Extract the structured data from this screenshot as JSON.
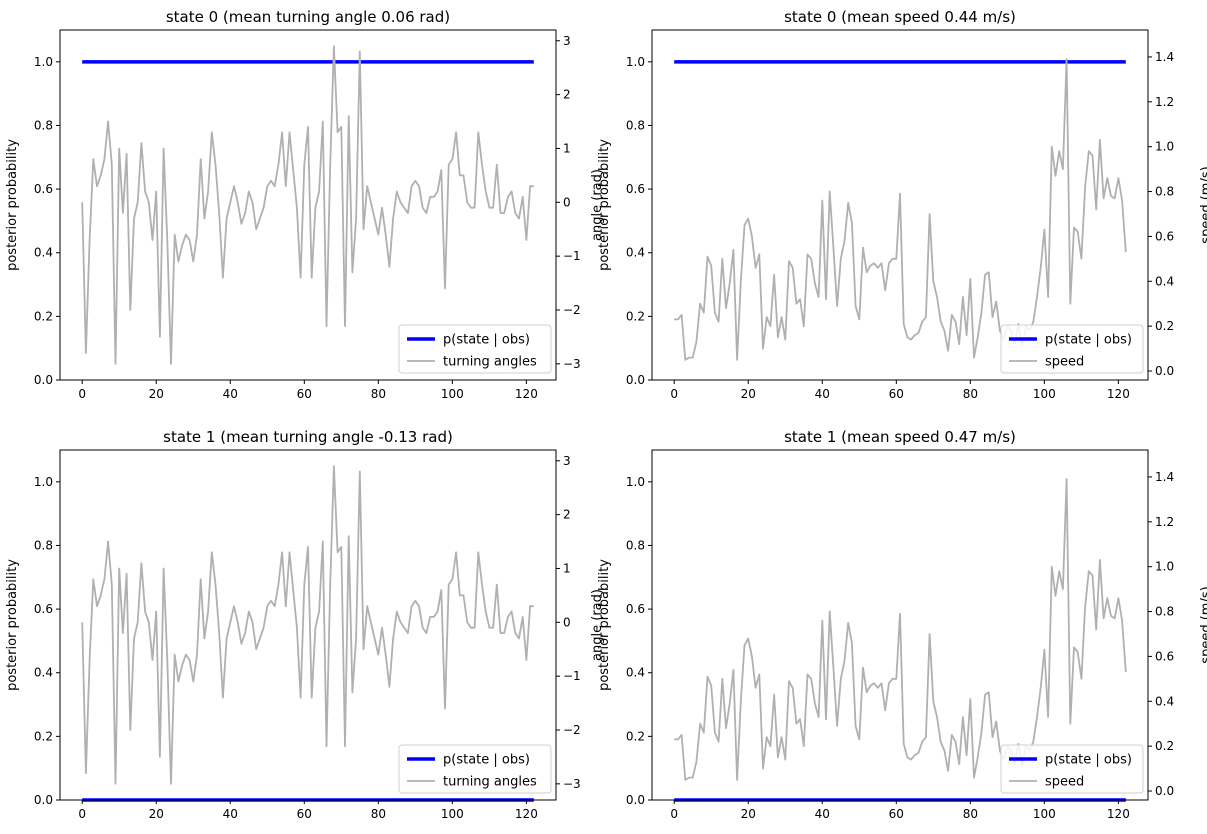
{
  "chart_data": [
    {
      "type": "line",
      "title": "state 0 (mean turning angle 0.06 rad)",
      "ylabel": "posterior probability",
      "ylabel_right": "angle (rad)",
      "xlim": [
        -6,
        128
      ],
      "ylim": [
        0,
        1.1
      ],
      "ylim_right": [
        -3.3,
        3.2
      ],
      "x_ticks": [
        "0",
        "20",
        "40",
        "60",
        "80",
        "100",
        "120"
      ],
      "y_ticks": [
        "0.0",
        "0.2",
        "0.4",
        "0.6",
        "0.8",
        "1.0"
      ],
      "y_ticks_right": [
        "−3",
        "−2",
        "−1",
        "0",
        "1",
        "2",
        "3"
      ],
      "legend_position": "lower right",
      "series": [
        {
          "name": "p(state | obs)",
          "axis": "left",
          "color": "#0000ff",
          "constant": 1.0,
          "x_range": [
            0,
            122
          ]
        },
        {
          "name": "turning angles",
          "axis": "right",
          "color": "#b0b0b0",
          "signal": "angle"
        }
      ]
    },
    {
      "type": "line",
      "title": "state 0 (mean speed 0.44 m/s)",
      "ylabel": "posterior probability",
      "ylabel_right": "speed (m/s)",
      "xlim": [
        -6,
        128
      ],
      "ylim": [
        0,
        1.1
      ],
      "ylim_right": [
        -0.04,
        1.52
      ],
      "x_ticks": [
        "0",
        "20",
        "40",
        "60",
        "80",
        "100",
        "120"
      ],
      "y_ticks": [
        "0.0",
        "0.2",
        "0.4",
        "0.6",
        "0.8",
        "1.0"
      ],
      "y_ticks_right": [
        "0.0",
        "0.2",
        "0.4",
        "0.6",
        "0.8",
        "1.0",
        "1.2",
        "1.4"
      ],
      "legend_position": "lower right",
      "series": [
        {
          "name": "p(state | obs)",
          "axis": "left",
          "color": "#0000ff",
          "constant": 1.0,
          "x_range": [
            0,
            122
          ]
        },
        {
          "name": "speed",
          "axis": "right",
          "color": "#b0b0b0",
          "signal": "speed"
        }
      ]
    },
    {
      "type": "line",
      "title": "state 1 (mean turning angle -0.13 rad)",
      "ylabel": "posterior probability",
      "ylabel_right": "angle (rad)",
      "xlim": [
        -6,
        128
      ],
      "ylim": [
        0,
        1.1
      ],
      "ylim_right": [
        -3.3,
        3.2
      ],
      "x_ticks": [
        "0",
        "20",
        "40",
        "60",
        "80",
        "100",
        "120"
      ],
      "y_ticks": [
        "0.0",
        "0.2",
        "0.4",
        "0.6",
        "0.8",
        "1.0"
      ],
      "y_ticks_right": [
        "−3",
        "−2",
        "−1",
        "0",
        "1",
        "2",
        "3"
      ],
      "legend_position": "lower right",
      "series": [
        {
          "name": "p(state | obs)",
          "axis": "left",
          "color": "#0000ff",
          "constant": 0.0,
          "x_range": [
            0,
            122
          ]
        },
        {
          "name": "turning angles",
          "axis": "right",
          "color": "#b0b0b0",
          "signal": "angle"
        }
      ]
    },
    {
      "type": "line",
      "title": "state 1 (mean speed 0.47 m/s)",
      "ylabel": "posterior probability",
      "ylabel_right": "speed (m/s)",
      "xlim": [
        -6,
        128
      ],
      "ylim": [
        0,
        1.1
      ],
      "ylim_right": [
        -0.04,
        1.52
      ],
      "x_ticks": [
        "0",
        "20",
        "40",
        "60",
        "80",
        "100",
        "120"
      ],
      "y_ticks": [
        "0.0",
        "0.2",
        "0.4",
        "0.6",
        "0.8",
        "1.0"
      ],
      "y_ticks_right": [
        "0.0",
        "0.2",
        "0.4",
        "0.6",
        "0.8",
        "1.0",
        "1.2",
        "1.4"
      ],
      "legend_position": "lower right",
      "series": [
        {
          "name": "p(state | obs)",
          "axis": "left",
          "color": "#0000ff",
          "constant": 0.0,
          "x_range": [
            0,
            122
          ]
        },
        {
          "name": "speed",
          "axis": "right",
          "color": "#b0b0b0",
          "signal": "speed"
        }
      ]
    }
  ],
  "signals": {
    "x": [
      0,
      1,
      2,
      3,
      4,
      5,
      6,
      7,
      8,
      9,
      10,
      11,
      12,
      13,
      14,
      15,
      16,
      17,
      18,
      19,
      20,
      21,
      22,
      23,
      24,
      25,
      26,
      27,
      28,
      29,
      30,
      31,
      32,
      33,
      34,
      35,
      36,
      37,
      38,
      39,
      40,
      41,
      42,
      43,
      44,
      45,
      46,
      47,
      48,
      49,
      50,
      51,
      52,
      53,
      54,
      55,
      56,
      57,
      58,
      59,
      60,
      61,
      62,
      63,
      64,
      65,
      66,
      67,
      68,
      69,
      70,
      71,
      72,
      73,
      74,
      75,
      76,
      77,
      78,
      79,
      80,
      81,
      82,
      83,
      84,
      85,
      86,
      87,
      88,
      89,
      90,
      91,
      92,
      93,
      94,
      95,
      96,
      97,
      98,
      99,
      100,
      101,
      102,
      103,
      104,
      105,
      106,
      107,
      108,
      109,
      110,
      111,
      112,
      113,
      114,
      115,
      116,
      117,
      118,
      119,
      120,
      121,
      122
    ],
    "angle": [
      0.0,
      -2.8,
      -0.7,
      0.8,
      0.3,
      0.5,
      0.8,
      1.5,
      0.7,
      -3.0,
      1.0,
      -0.2,
      0.9,
      -2.0,
      -0.3,
      0.0,
      1.1,
      0.2,
      0.0,
      -0.7,
      0.2,
      -2.5,
      1.0,
      -0.7,
      -3.0,
      -0.6,
      -1.1,
      -0.8,
      -0.6,
      -0.7,
      -1.1,
      -0.6,
      0.8,
      -0.3,
      0.2,
      1.3,
      0.7,
      -0.2,
      -1.4,
      -0.3,
      0.0,
      0.3,
      0.0,
      -0.4,
      -0.2,
      0.2,
      0.0,
      -0.5,
      -0.3,
      -0.1,
      0.3,
      0.4,
      0.3,
      0.7,
      1.3,
      0.3,
      1.3,
      0.6,
      -0.1,
      -1.4,
      0.7,
      1.4,
      -1.4,
      -0.1,
      0.2,
      1.5,
      -2.3,
      0.7,
      2.9,
      1.3,
      1.4,
      -2.3,
      1.6,
      -1.3,
      -0.3,
      2.8,
      -0.5,
      0.3,
      0.0,
      -0.3,
      -0.6,
      -0.1,
      -0.6,
      -1.2,
      -0.3,
      0.2,
      0.0,
      -0.1,
      -0.2,
      0.3,
      0.4,
      0.3,
      -0.1,
      -0.2,
      0.1,
      0.1,
      0.2,
      0.6,
      -1.6,
      0.7,
      0.8,
      1.3,
      0.5,
      0.5,
      0.0,
      -0.1,
      -0.1,
      1.3,
      0.7,
      0.2,
      -0.1,
      -0.1,
      0.7,
      -0.2,
      -0.2,
      0.1,
      0.2,
      -0.2,
      -0.3,
      0.1,
      -0.7,
      0.3,
      0.3,
      0.2,
      0.0
    ],
    "speed": [
      0.23,
      0.23,
      0.25,
      0.05,
      0.06,
      0.06,
      0.13,
      0.3,
      0.26,
      0.51,
      0.47,
      0.26,
      0.22,
      0.5,
      0.28,
      0.39,
      0.54,
      0.05,
      0.4,
      0.65,
      0.68,
      0.6,
      0.46,
      0.52,
      0.1,
      0.24,
      0.2,
      0.43,
      0.15,
      0.24,
      0.14,
      0.49,
      0.46,
      0.3,
      0.32,
      0.2,
      0.52,
      0.5,
      0.39,
      0.33,
      0.76,
      0.32,
      0.8,
      0.55,
      0.29,
      0.5,
      0.58,
      0.75,
      0.66,
      0.29,
      0.23,
      0.55,
      0.44,
      0.47,
      0.48,
      0.46,
      0.48,
      0.36,
      0.48,
      0.5,
      0.5,
      0.79,
      0.21,
      0.15,
      0.14,
      0.16,
      0.17,
      0.22,
      0.24,
      0.7,
      0.4,
      0.33,
      0.22,
      0.18,
      0.09,
      0.25,
      0.22,
      0.12,
      0.33,
      0.16,
      0.41,
      0.06,
      0.15,
      0.26,
      0.43,
      0.44,
      0.24,
      0.31,
      0.18,
      0.14,
      0.2,
      0.18,
      0.12,
      0.21,
      0.11,
      0.2,
      0.18,
      0.22,
      0.33,
      0.46,
      0.63,
      0.33,
      1.0,
      0.87,
      0.98,
      0.9,
      1.39,
      0.3,
      0.64,
      0.62,
      0.5,
      0.82,
      0.98,
      0.96,
      0.72,
      1.03,
      0.77,
      0.86,
      0.78,
      0.77,
      0.86,
      0.76,
      0.53
    ]
  }
}
